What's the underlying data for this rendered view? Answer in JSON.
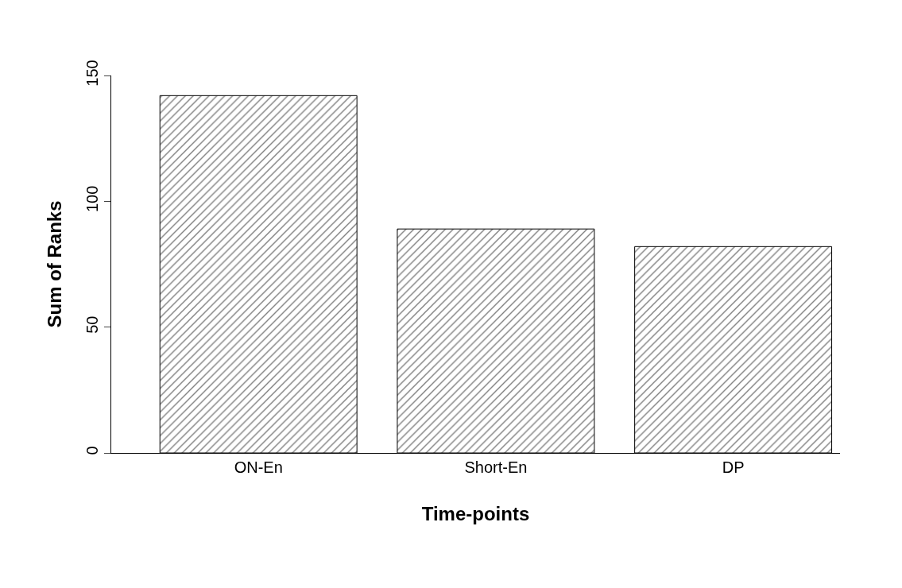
{
  "chart_data": {
    "type": "bar",
    "categories": [
      "ON-En",
      "Short-En",
      "DP"
    ],
    "values": [
      142,
      89,
      82
    ],
    "color": "#000000",
    "xlabel": "Time-points",
    "ylabel": "Sum of Ranks",
    "ylim": [
      0,
      150
    ],
    "yticks": [
      0,
      50,
      100,
      150
    ],
    "legend": false
  }
}
